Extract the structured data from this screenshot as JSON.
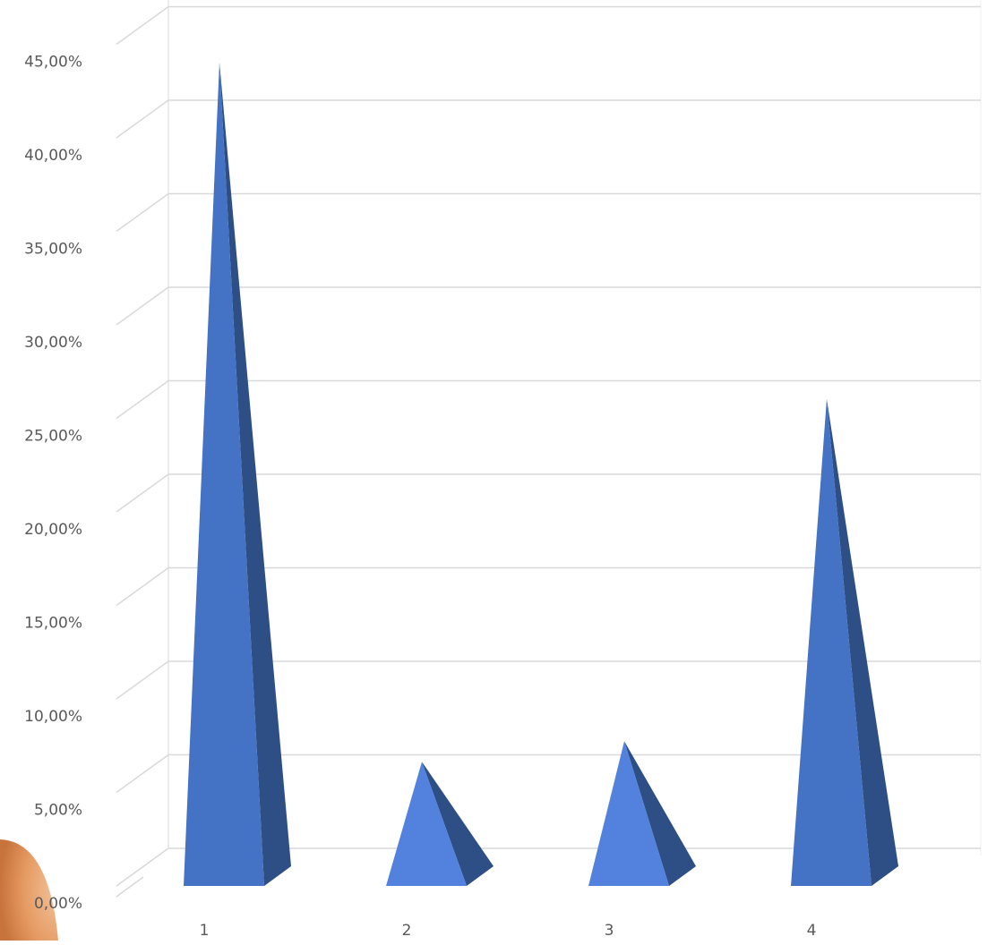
{
  "chart_data": {
    "type": "bar",
    "style": "3d-pyramid",
    "categories": [
      "1",
      "2",
      "3",
      "4"
    ],
    "series": [
      {
        "values": [
          43.8,
          6.4,
          7.5,
          25.8
        ]
      }
    ],
    "ylim": [
      0,
      45
    ],
    "y_tick_values": [
      0,
      5,
      10,
      15,
      20,
      25,
      30,
      35,
      40,
      45
    ],
    "y_tick_labels": [
      "0,00%",
      "5,00%",
      "10,00%",
      "15,00%",
      "20,00%",
      "25,00%",
      "30,00%",
      "35,00%",
      "40,00%",
      "45,00%"
    ],
    "grid": true,
    "legend": "none",
    "colors": {
      "bar_front_tall": "#4472c4",
      "bar_front_short": "#5282dd",
      "bar_side": "#2e4f86",
      "grid": "#d9d9d9",
      "label": "#595959",
      "accent": "#e8a06a"
    }
  }
}
